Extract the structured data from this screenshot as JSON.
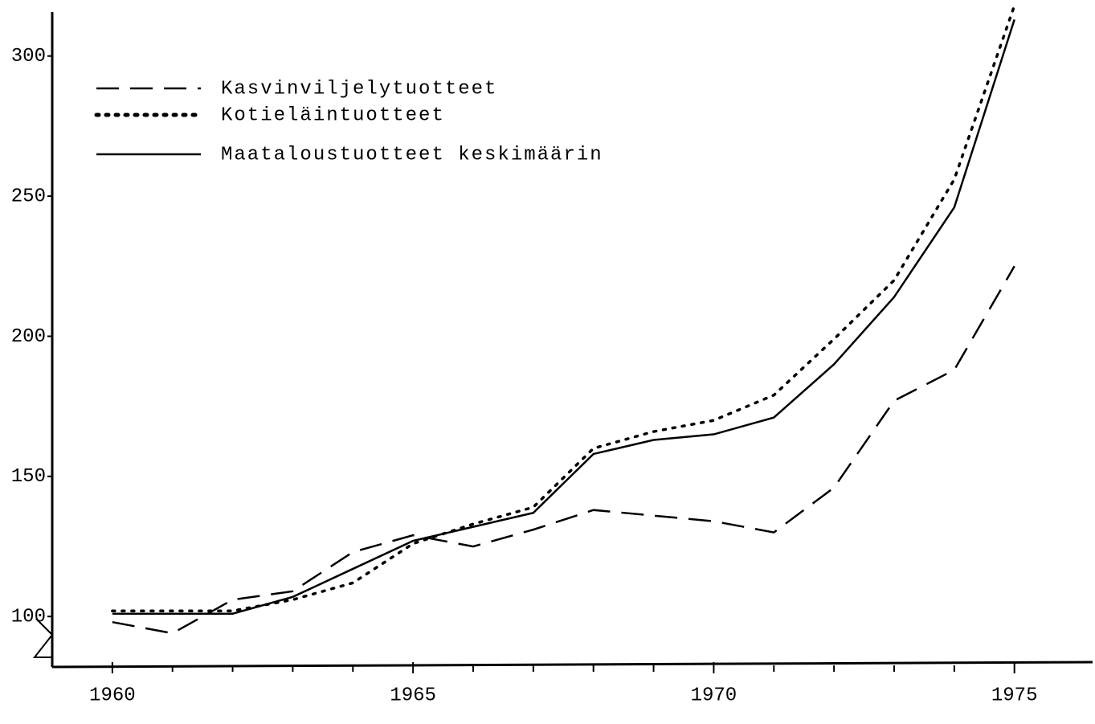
{
  "chart_data": {
    "type": "line",
    "x": [
      1960,
      1961,
      1962,
      1963,
      1964,
      1965,
      1966,
      1967,
      1968,
      1969,
      1970,
      1971,
      1972,
      1973,
      1974,
      1975
    ],
    "series": [
      {
        "name": "Kasvinviljelytuotteet",
        "color": "#000000",
        "style": "dashed",
        "values": [
          98,
          94,
          106,
          109,
          123,
          129,
          125,
          131,
          138,
          136,
          134,
          130,
          146,
          177,
          188,
          225
        ]
      },
      {
        "name": "Kotieläintuotteet",
        "color": "#000000",
        "style": "dotted",
        "values": [
          102,
          102,
          102,
          106,
          112,
          126,
          133,
          139,
          160,
          166,
          170,
          179,
          199,
          220,
          256,
          318
        ]
      },
      {
        "name": "Maataloustuotteet keskimäärin",
        "color": "#000000",
        "style": "solid",
        "values": [
          101,
          101,
          101,
          107,
          117,
          127,
          132,
          137,
          158,
          163,
          165,
          171,
          190,
          214,
          246,
          313
        ]
      }
    ],
    "xlim": [
      1959,
      1976.3
    ],
    "xticks": [
      1960,
      1965,
      1970,
      1975
    ],
    "x_minor_ticks": [
      1961,
      1962,
      1963,
      1964,
      1966,
      1967,
      1968,
      1969,
      1971,
      1972,
      1973,
      1974
    ],
    "ylim": [
      82,
      320
    ],
    "yticks": [
      100,
      150,
      200,
      250,
      300
    ],
    "grid": false,
    "legend": "upper left"
  }
}
